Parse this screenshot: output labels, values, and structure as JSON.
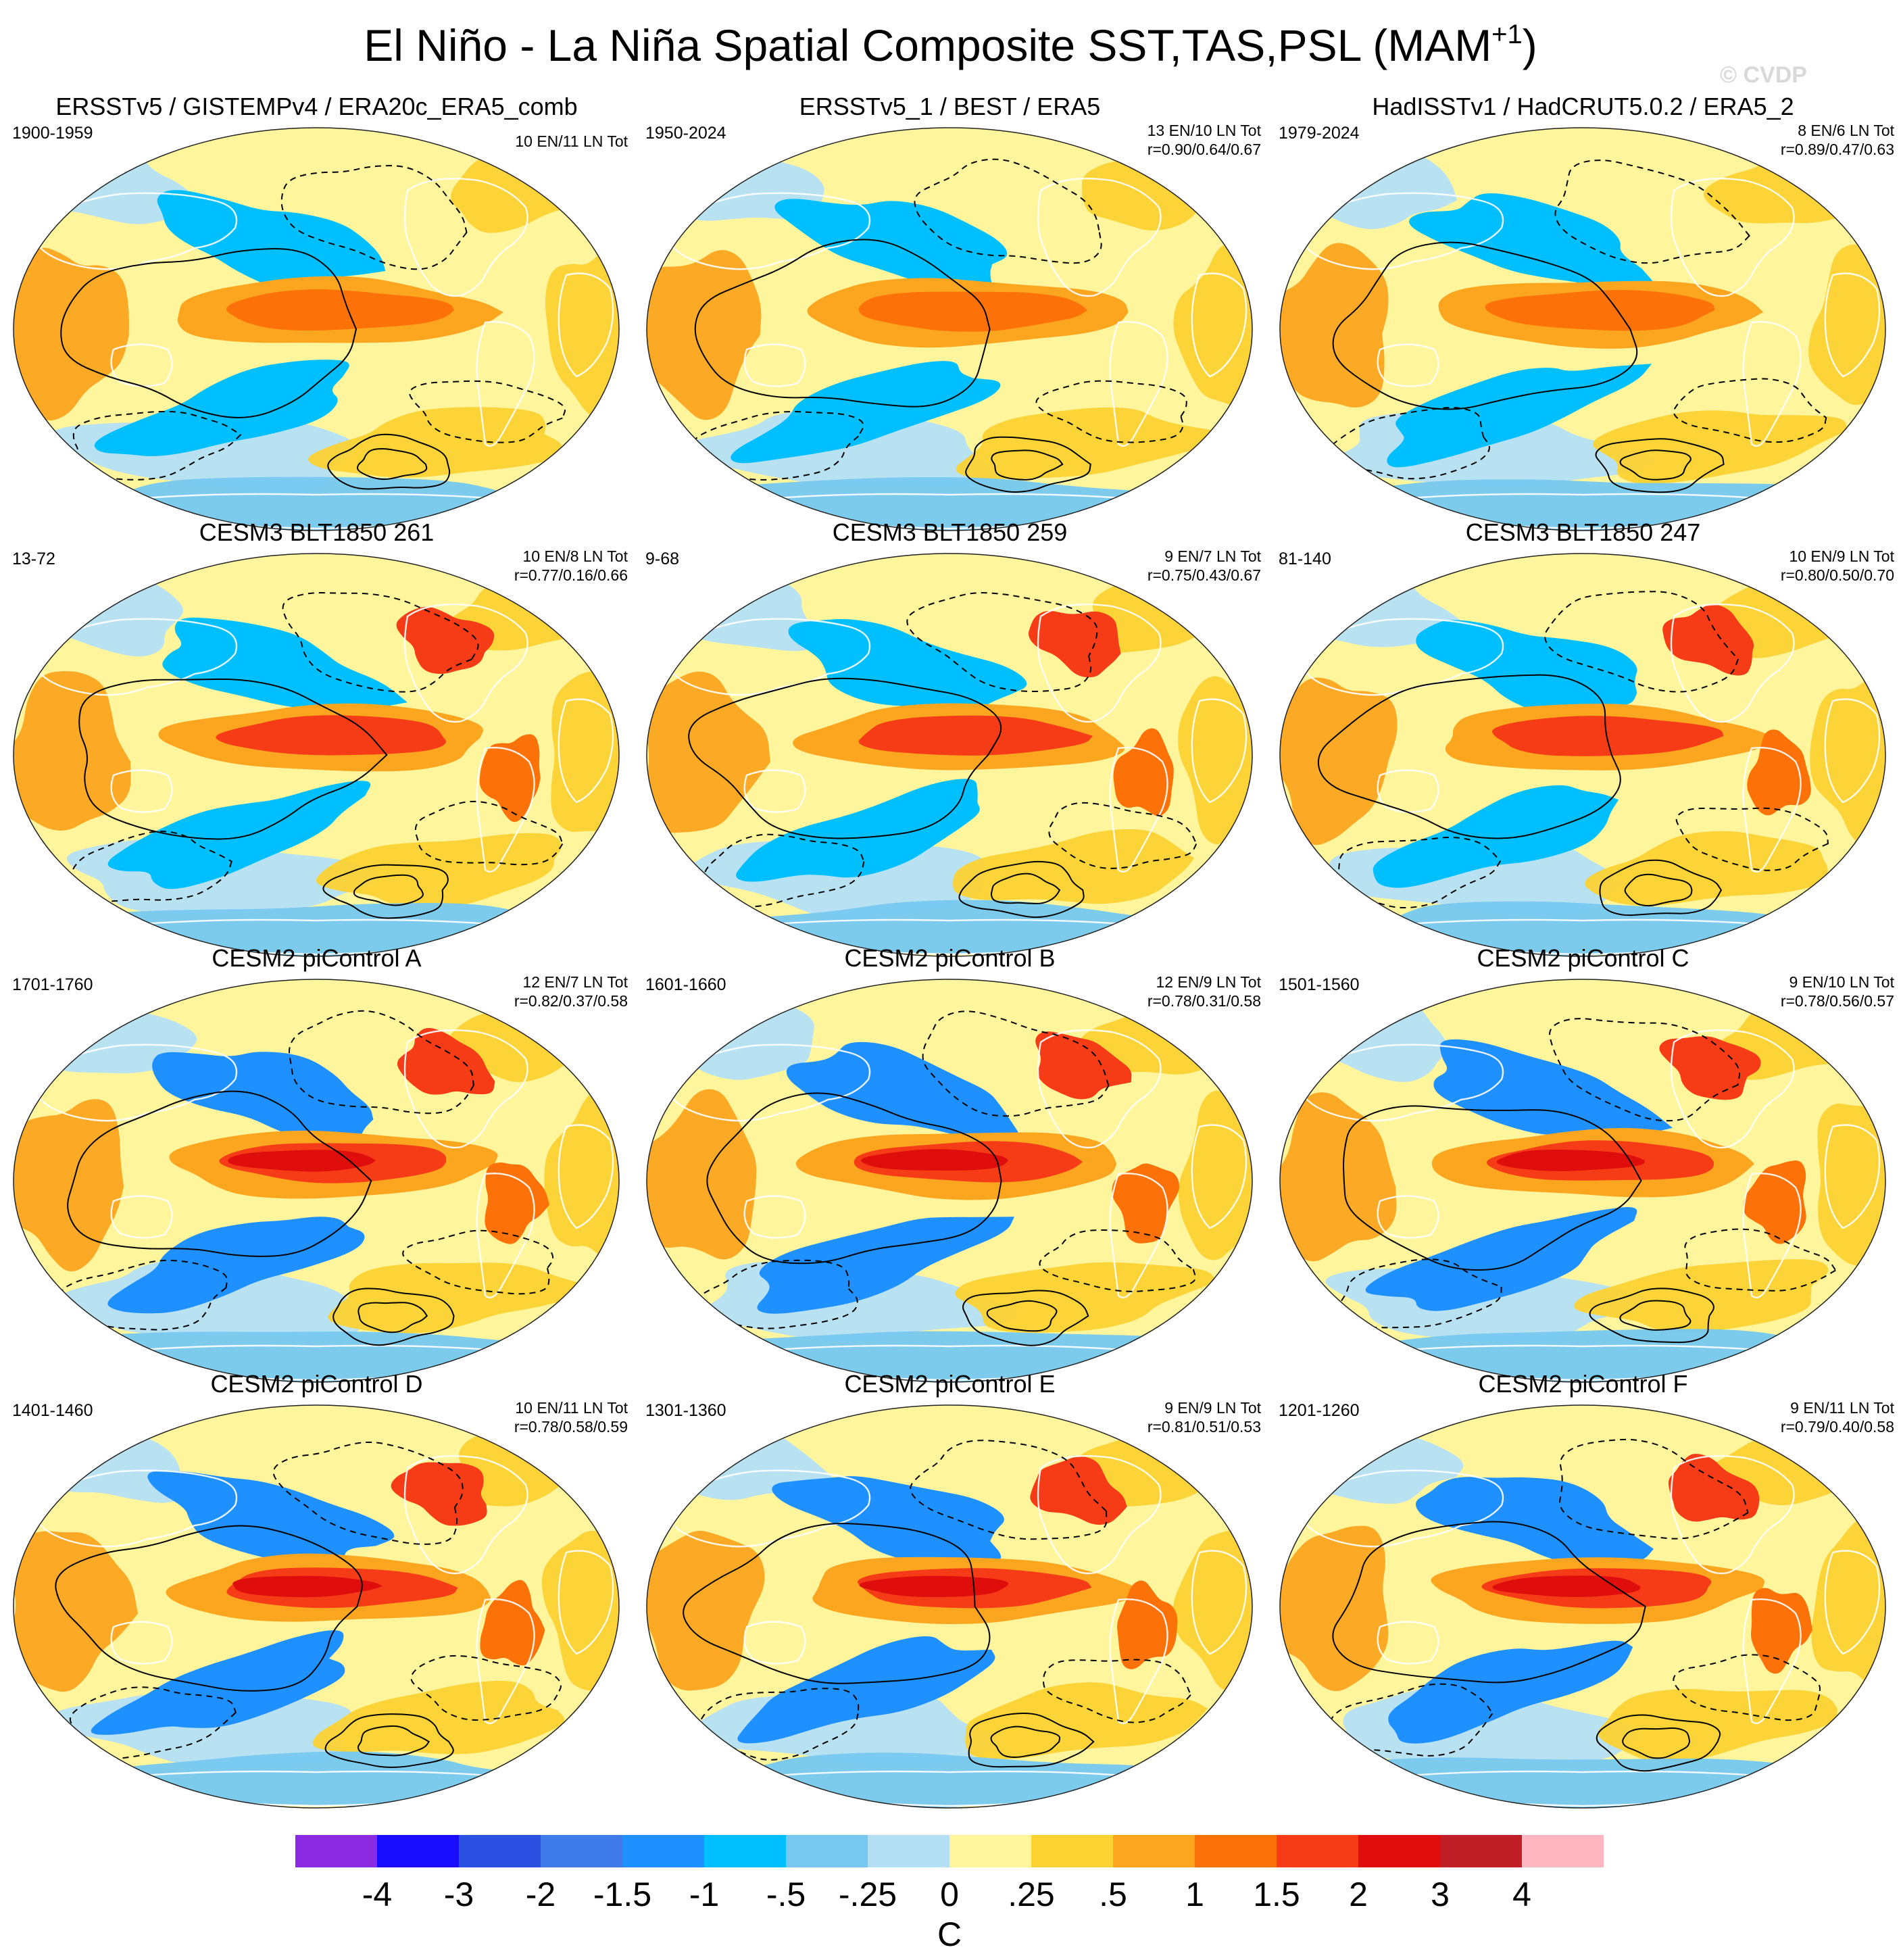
{
  "figure": {
    "title_main": "El Niño - La Niña Spatial Composite SST,TAS,PSL (MAM",
    "title_sup": "+1",
    "title_close": ")",
    "watermark": "© CVDP"
  },
  "panels": [
    {
      "title": "ERSSTv5 / GISTEMPv4 / ERA20c_ERA5_comb",
      "period": "1900-1959",
      "counts": "10 EN/11 LN Tot",
      "corr": ""
    },
    {
      "title": "ERSSTv5_1 / BEST / ERA5",
      "period": "1950-2024",
      "counts": "13 EN/10 LN Tot",
      "corr": "r=0.90/0.64/0.67"
    },
    {
      "title": "HadISSTv1 / HadCRUT5.0.2 / ERA5_2",
      "period": "1979-2024",
      "counts": "8 EN/6 LN Tot",
      "corr": "r=0.89/0.47/0.63"
    },
    {
      "title": "CESM3 BLT1850 261",
      "period": "13-72",
      "counts": "10 EN/8 LN Tot",
      "corr": "r=0.77/0.16/0.66"
    },
    {
      "title": "CESM3 BLT1850 259",
      "period": "9-68",
      "counts": "9 EN/7 LN Tot",
      "corr": "r=0.75/0.43/0.67"
    },
    {
      "title": "CESM3 BLT1850 247",
      "period": "81-140",
      "counts": "10 EN/9 LN Tot",
      "corr": "r=0.80/0.50/0.70"
    },
    {
      "title": "CESM2 piControl A",
      "period": "1701-1760",
      "counts": "12 EN/7 LN Tot",
      "corr": "r=0.82/0.37/0.58"
    },
    {
      "title": "CESM2 piControl B",
      "period": "1601-1660",
      "counts": "12 EN/9 LN Tot",
      "corr": "r=0.78/0.31/0.58"
    },
    {
      "title": "CESM2 piControl C",
      "period": "1501-1560",
      "counts": "9 EN/10 LN Tot",
      "corr": "r=0.78/0.56/0.57"
    },
    {
      "title": "CESM2 piControl D",
      "period": "1401-1460",
      "counts": "10 EN/11 LN Tot",
      "corr": "r=0.78/0.58/0.59"
    },
    {
      "title": "CESM2 piControl E",
      "period": "1301-1360",
      "counts": "9 EN/9 LN Tot",
      "corr": "r=0.81/0.51/0.53"
    },
    {
      "title": "CESM2 piControl F",
      "period": "1201-1260",
      "counts": "9 EN/11 LN Tot",
      "corr": "r=0.79/0.40/0.58"
    }
  ],
  "colorbar": {
    "unit": "C",
    "labels": [
      "-4",
      "-3",
      "-2",
      "-1.5",
      "-1",
      "-.5",
      "-.25",
      "0",
      ".25",
      ".5",
      "1",
      "1.5",
      "2",
      "3",
      "4"
    ],
    "colors": [
      "#8a2be2",
      "#1a0dff",
      "#2b4fe0",
      "#3e7ae8",
      "#1e90ff",
      "#00bfff",
      "#76c8f0",
      "#b4dff5",
      "#fff59d",
      "#fcd233",
      "#fca51f",
      "#fc7208",
      "#f53c17",
      "#e00d0d",
      "#c01f27",
      "#ffb6c1"
    ],
    "palette": {
      "ocean_neutral": "#fff59d",
      "warm_light": "#fcd233",
      "warm_mid": "#fca51f",
      "warm_strong": "#fc7208",
      "hot": "#f53c17",
      "hotter": "#e00d0d",
      "cool_light": "#b4dff5",
      "cool_mid": "#76c8f0",
      "cool_strong": "#00bfff",
      "cold": "#1e90ff",
      "colder": "#2b4fe0",
      "coastline": "#ffffff",
      "contour": "#000000"
    }
  }
}
